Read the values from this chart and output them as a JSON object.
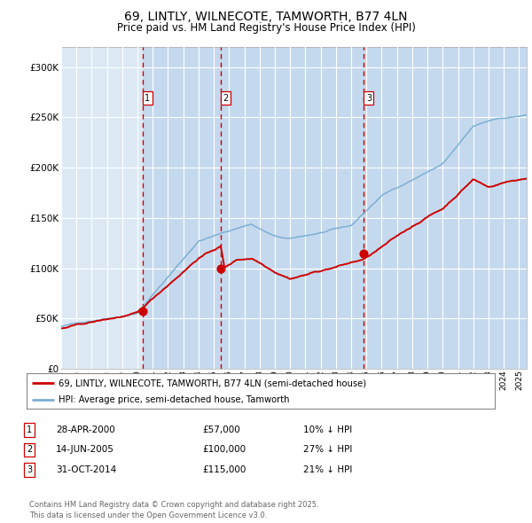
{
  "title": "69, LINTLY, WILNECOTE, TAMWORTH, B77 4LN",
  "subtitle": "Price paid vs. HM Land Registry's House Price Index (HPI)",
  "title_fontsize": 10,
  "subtitle_fontsize": 8.5,
  "background_color": "#ffffff",
  "plot_bg_color": "#dce9f5",
  "grid_color": "#ffffff",
  "hpi_line_color": "#7bafd4",
  "price_line_color": "#cc0000",
  "sale_marker_color": "#cc0000",
  "vline_color": "#cc0000",
  "shade_color": "#c5d9ee",
  "ylim": [
    0,
    320000
  ],
  "ytick_labels": [
    "£0",
    "£50K",
    "£100K",
    "£150K",
    "£200K",
    "£250K",
    "£300K"
  ],
  "ytick_values": [
    0,
    50000,
    100000,
    150000,
    200000,
    250000,
    300000
  ],
  "sales": [
    {
      "date_year": 2000.33,
      "price": 57000,
      "label": "1"
    },
    {
      "date_year": 2005.45,
      "price": 100000,
      "label": "2"
    },
    {
      "date_year": 2014.83,
      "price": 115000,
      "label": "3"
    }
  ],
  "sale_dates_display": [
    "28-APR-2000",
    "14-JUN-2005",
    "31-OCT-2014"
  ],
  "sale_prices_display": [
    "£57,000",
    "£100,000",
    "£115,000"
  ],
  "sale_pct_display": [
    "10% ↓ HPI",
    "27% ↓ HPI",
    "21% ↓ HPI"
  ],
  "legend_line1": "69, LINTLY, WILNECOTE, TAMWORTH, B77 4LN (semi-detached house)",
  "legend_line2": "HPI: Average price, semi-detached house, Tamworth",
  "footer": "Contains HM Land Registry data © Crown copyright and database right 2025.\nThis data is licensed under the Open Government Licence v3.0.",
  "xmin": 1995,
  "xmax": 2025.5
}
